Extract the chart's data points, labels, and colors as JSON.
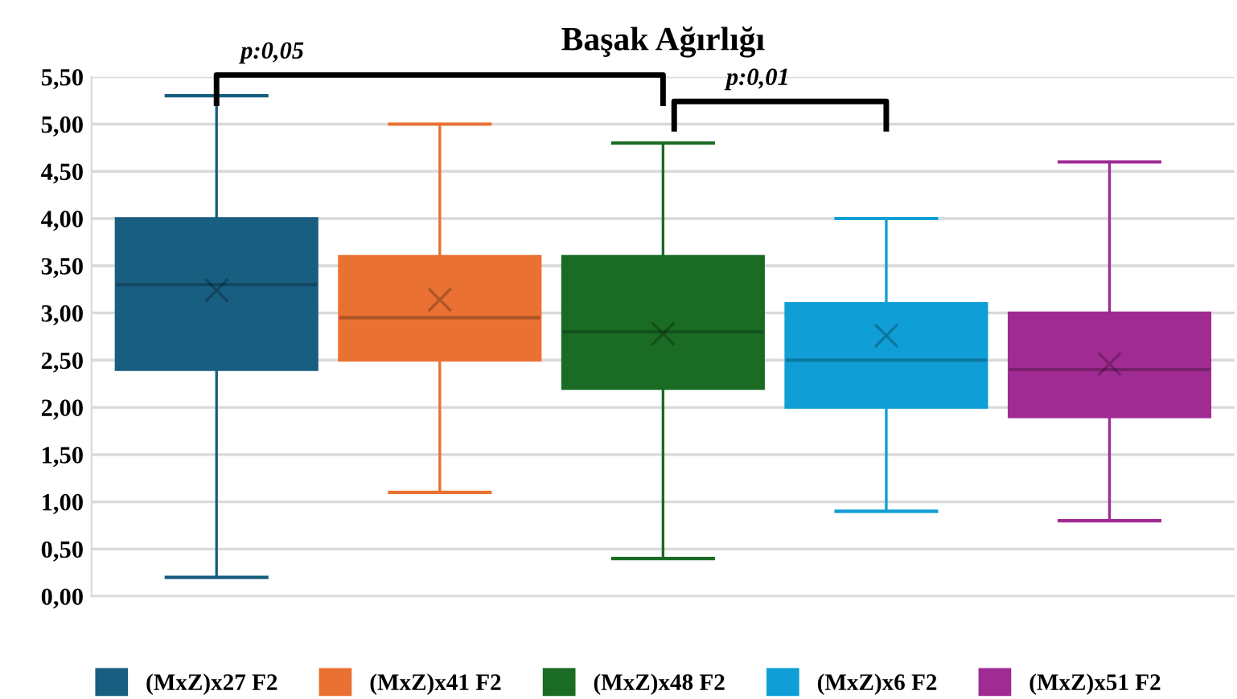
{
  "chart_data": {
    "type": "box",
    "title": "Başak Ağırlığı",
    "categories": [
      null
    ],
    "series": [
      {
        "name": "(MxZ)x27 F2",
        "color": "#185e80",
        "boxes": [
          {
            "low": 0.2,
            "q1": 2.4,
            "median": 3.3,
            "q3": 4.0,
            "high": 5.3,
            "mean": 3.24
          }
        ]
      },
      {
        "name": "(MxZ)x41 F2",
        "color": "#e97132",
        "boxes": [
          {
            "low": 1.1,
            "q1": 2.5,
            "median": 2.95,
            "q3": 3.6,
            "high": 5.0,
            "mean": 3.14
          }
        ]
      },
      {
        "name": "(MxZ)x48 F2",
        "color": "#1a6b24",
        "boxes": [
          {
            "low": 0.4,
            "q1": 2.2,
            "median": 2.8,
            "q3": 3.6,
            "high": 4.8,
            "mean": 2.78
          }
        ]
      },
      {
        "name": "(MxZ)x6 F2",
        "color": "#0f9ed5",
        "boxes": [
          {
            "low": 0.9,
            "q1": 2.0,
            "median": 2.5,
            "q3": 3.1,
            "high": 4.0,
            "mean": 2.76
          }
        ]
      },
      {
        "name": "(MxZ)x51 F2",
        "color": "#a02b93",
        "boxes": [
          {
            "low": 0.8,
            "q1": 1.9,
            "median": 2.4,
            "q3": 3.0,
            "high": 4.6,
            "mean": 2.46
          }
        ]
      }
    ],
    "ylim": [
      0,
      5.5
    ],
    "yticks": [
      {
        "value": 0,
        "label": "0,00"
      },
      {
        "value": 0.5,
        "label": "0,50"
      },
      {
        "value": 1,
        "label": "1,00"
      },
      {
        "value": 1.5,
        "label": "1,50"
      },
      {
        "value": 2,
        "label": "2,00"
      },
      {
        "value": 2.5,
        "label": "2,50"
      },
      {
        "value": 3,
        "label": "3,00"
      },
      {
        "value": 3.5,
        "label": "3,50"
      },
      {
        "value": 4,
        "label": "4,00"
      },
      {
        "value": 4.5,
        "label": "4,50"
      },
      {
        "value": 5,
        "label": "5,00"
      },
      {
        "value": 5.5,
        "label": "5,50"
      }
    ],
    "grid": "y",
    "legend": "bottom",
    "tick_labels": "y",
    "annotations": [
      "p:0,05",
      "p:0,01"
    ]
  }
}
